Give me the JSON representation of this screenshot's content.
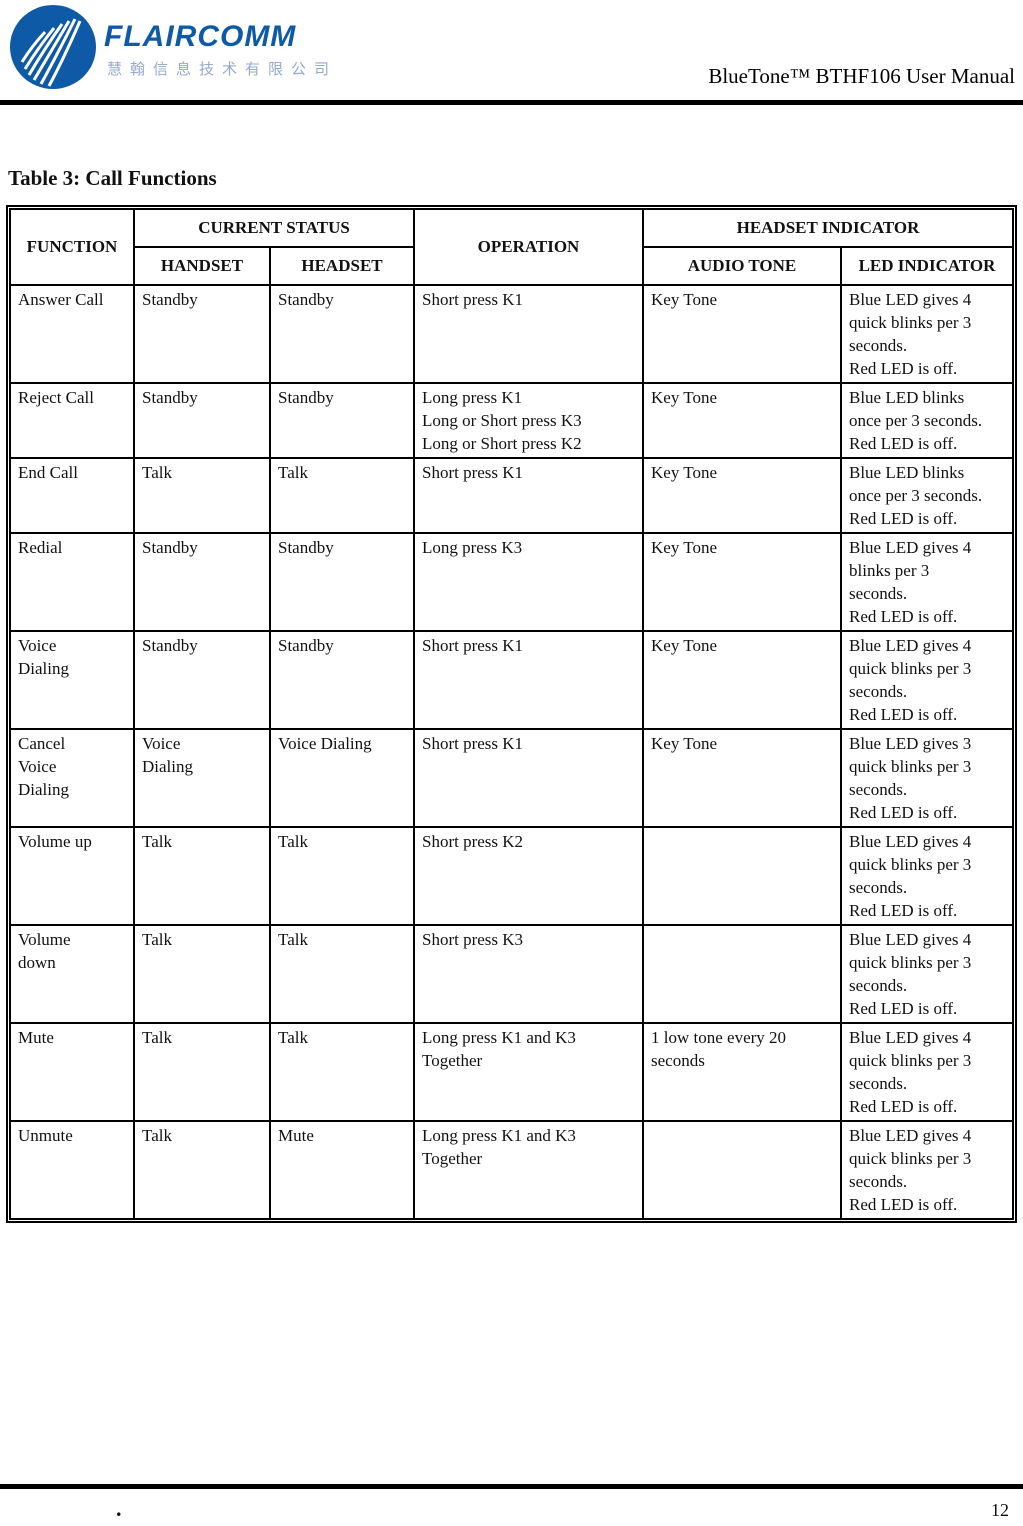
{
  "header": {
    "brand": "FLAIRCOMM",
    "brand_cn": "慧翰信息技术有限公司",
    "doc_title": "BlueTone™ BTHF106 User Manual",
    "logo_color": "#0e5aa7",
    "cn_color": "#93a9ce"
  },
  "section": {
    "title": "Table 3: Call Functions"
  },
  "table": {
    "headers": {
      "function": "FUNCTION",
      "current_status": "CURRENT STATUS",
      "handset": "HANDSET",
      "headset": "HEADSET",
      "operation": "OPERATION",
      "headset_indicator": "HEADSET INDICATOR",
      "audio_tone": "AUDIO TONE",
      "led_indicator": "LED INDICATOR"
    },
    "rows": [
      {
        "function": [
          "Answer Call"
        ],
        "handset": [
          "Standby"
        ],
        "headset": [
          "Standby"
        ],
        "operation": [
          "Short press K1"
        ],
        "audio_tone": [
          "Key Tone"
        ],
        "led_indicator": [
          "Blue LED gives 4",
          "quick blinks per 3",
          "seconds.",
          "Red LED is off."
        ]
      },
      {
        "function": [
          "Reject Call"
        ],
        "handset": [
          "Standby"
        ],
        "headset": [
          "Standby"
        ],
        "operation": [
          "Long press K1",
          "Long or Short press K3",
          "Long or Short press K2"
        ],
        "audio_tone": [
          "Key Tone"
        ],
        "led_indicator": [
          "Blue LED blinks",
          "once per 3 seconds.",
          "Red LED is off."
        ]
      },
      {
        "function": [
          "End Call"
        ],
        "handset": [
          "Talk"
        ],
        "headset": [
          "Talk"
        ],
        "operation": [
          "Short press K1"
        ],
        "audio_tone": [
          "Key Tone"
        ],
        "led_indicator": [
          "Blue LED blinks",
          "once per 3 seconds.",
          "Red LED is off."
        ]
      },
      {
        "function": [
          "Redial"
        ],
        "handset": [
          "Standby"
        ],
        "headset": [
          "Standby"
        ],
        "operation": [
          "Long press K3"
        ],
        "audio_tone": [
          "Key Tone"
        ],
        "led_indicator": [
          "Blue LED gives 4",
          "blinks per 3",
          "seconds.",
          "Red LED is off."
        ]
      },
      {
        "function": [
          "Voice",
          "Dialing"
        ],
        "handset": [
          "Standby"
        ],
        "headset": [
          "Standby"
        ],
        "operation": [
          "Short press K1"
        ],
        "audio_tone": [
          "Key Tone"
        ],
        "led_indicator": [
          "Blue LED gives 4",
          "quick blinks per 3",
          "seconds.",
          "Red LED is off."
        ]
      },
      {
        "function": [
          "Cancel",
          "Voice",
          "Dialing"
        ],
        "handset": [
          "Voice",
          "Dialing"
        ],
        "headset": [
          "Voice Dialing"
        ],
        "operation": [
          "Short press K1"
        ],
        "audio_tone": [
          "Key Tone"
        ],
        "led_indicator": [
          "Blue LED gives 3",
          "quick blinks per 3",
          "seconds.",
          "Red LED is off."
        ]
      },
      {
        "function": [
          "Volume up"
        ],
        "handset": [
          "Talk"
        ],
        "headset": [
          "Talk"
        ],
        "operation": [
          "Short press K2"
        ],
        "audio_tone": [],
        "led_indicator": [
          "Blue LED gives 4",
          "quick blinks per 3",
          "seconds.",
          "Red LED is off."
        ]
      },
      {
        "function": [
          "Volume",
          "down"
        ],
        "handset": [
          "Talk"
        ],
        "headset": [
          "Talk"
        ],
        "operation": [
          "Short press K3"
        ],
        "audio_tone": [],
        "led_indicator": [
          "Blue LED gives 4",
          "quick blinks per 3",
          "seconds.",
          "Red LED is off."
        ]
      },
      {
        "function": [
          "Mute"
        ],
        "handset": [
          "Talk"
        ],
        "headset": [
          "Talk"
        ],
        "operation": [
          "Long press K1 and K3",
          "Together"
        ],
        "audio_tone": [
          "1 low tone every 20",
          "seconds"
        ],
        "led_indicator": [
          "Blue LED gives 4",
          "quick blinks per 3",
          "seconds.",
          "Red LED is off."
        ]
      },
      {
        "function": [
          "Unmute"
        ],
        "handset": [
          "Talk"
        ],
        "headset": [
          "Mute"
        ],
        "operation": [
          "Long press K1 and K3",
          "Together"
        ],
        "audio_tone": [],
        "led_indicator": [
          "Blue LED gives 4",
          "quick blinks per 3",
          "seconds.",
          "Red LED is off."
        ]
      }
    ]
  },
  "footer": {
    "dot": ".",
    "page_number": "12"
  }
}
